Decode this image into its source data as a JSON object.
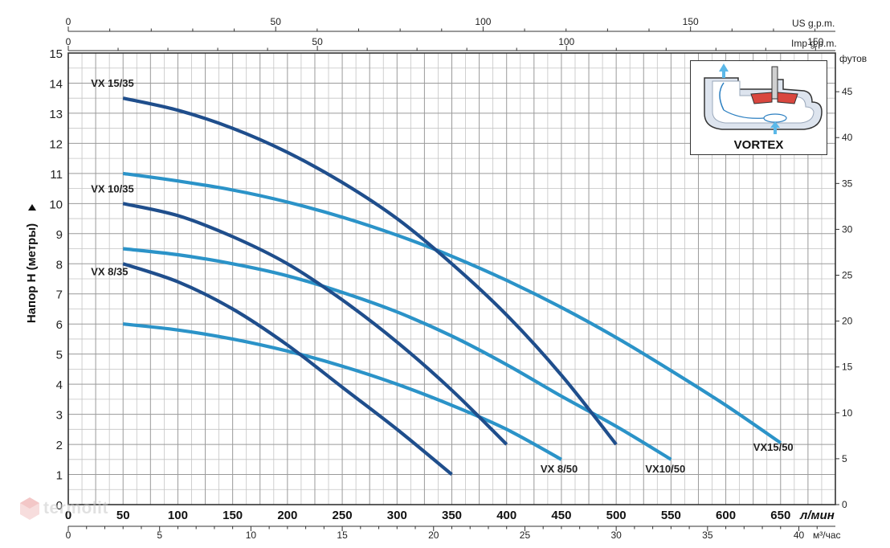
{
  "chart_data": {
    "type": "line",
    "ylabel": "Напор H (метры)",
    "ylabel_right": "футов",
    "xlabel_bottom_primary": "л/мин",
    "xlabel_bottom_secondary": "м³/час",
    "xlabel_top_primary": "US g.p.m.",
    "xlabel_top_secondary": "Imp g.p.m.",
    "xlim": [
      0,
      700
    ],
    "ylim": [
      0,
      15
    ],
    "grid": true,
    "y_ticks": [
      "0",
      "1",
      "2",
      "3",
      "4",
      "5",
      "6",
      "7",
      "8",
      "9",
      "10",
      "11",
      "12",
      "13",
      "14",
      "15"
    ],
    "x_ticks_lpm": [
      "0",
      "50",
      "100",
      "150",
      "200",
      "250",
      "300",
      "350",
      "400",
      "450",
      "500",
      "550",
      "600",
      "650"
    ],
    "x_ticks_m3h": [
      "0",
      "5",
      "10",
      "15",
      "20",
      "25",
      "30",
      "35",
      "40"
    ],
    "x_ticks_usgpm": [
      "0",
      "50",
      "100",
      "150"
    ],
    "x_ticks_impgpm": [
      "0",
      "50",
      "100",
      "150"
    ],
    "y_ticks_feet": [
      "0",
      "5",
      "10",
      "15",
      "20",
      "25",
      "30",
      "35",
      "40",
      "45"
    ],
    "series": [
      {
        "name": "VX 15/35",
        "color": "#1f4e8c",
        "x": [
          50,
          100,
          150,
          200,
          250,
          300,
          350,
          400,
          450,
          500
        ],
        "y": [
          13.5,
          13.1,
          12.5,
          11.7,
          10.7,
          9.5,
          8.0,
          6.3,
          4.3,
          2.0
        ]
      },
      {
        "name": "VX 10/35",
        "color": "#1f4e8c",
        "x": [
          50,
          100,
          150,
          200,
          250,
          300,
          350,
          400
        ],
        "y": [
          10.0,
          9.6,
          8.9,
          8.0,
          6.8,
          5.4,
          3.8,
          2.0
        ]
      },
      {
        "name": "VX 8/35",
        "color": "#1f4e8c",
        "x": [
          50,
          100,
          150,
          200,
          250,
          300,
          350
        ],
        "y": [
          8.0,
          7.4,
          6.5,
          5.3,
          3.9,
          2.5,
          1.0
        ]
      },
      {
        "name": "VX15/50",
        "color": "#2b93c8",
        "x": [
          50,
          100,
          150,
          200,
          250,
          300,
          350,
          400,
          450,
          500,
          550,
          600,
          650
        ],
        "y": [
          11.0,
          10.75,
          10.45,
          10.05,
          9.55,
          8.95,
          8.25,
          7.45,
          6.55,
          5.55,
          4.45,
          3.3,
          2.05
        ]
      },
      {
        "name": "VX10/50",
        "color": "#2b93c8",
        "x": [
          50,
          100,
          150,
          200,
          250,
          300,
          350,
          400,
          450,
          500,
          550
        ],
        "y": [
          8.5,
          8.3,
          8.0,
          7.6,
          7.05,
          6.4,
          5.6,
          4.65,
          3.6,
          2.6,
          1.5
        ]
      },
      {
        "name": "VX 8/50",
        "color": "#2b93c8",
        "x": [
          50,
          100,
          150,
          200,
          250,
          300,
          350,
          400,
          450
        ],
        "y": [
          6.0,
          5.8,
          5.5,
          5.1,
          4.6,
          4.0,
          3.3,
          2.5,
          1.5
        ]
      }
    ]
  },
  "inset": {
    "title": "VORTEX"
  },
  "watermark": {
    "text": "termolit"
  }
}
